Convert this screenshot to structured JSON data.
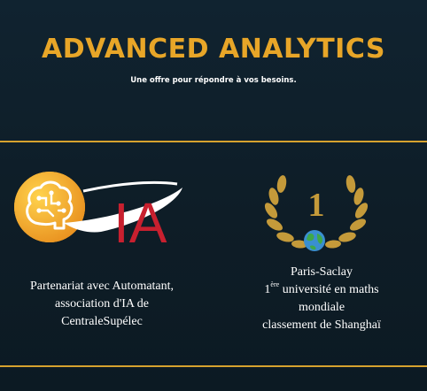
{
  "header": {
    "title": "ADVANCED ANALYTICS",
    "subtitle": "Une offre pour répondre à vos besoins."
  },
  "left_panel": {
    "logo_text": "IA",
    "caption_lines": [
      "Partenariat avec Automatant,",
      "association d'IA de",
      "CentraleSupélec"
    ]
  },
  "right_panel": {
    "rank": "1",
    "caption": {
      "line1": "Paris-Saclay",
      "rank_number": "1",
      "rank_suffix": "ère",
      "rank_rest": " université en maths",
      "line3": "mondiale",
      "line4": "classement de Shanghaï"
    }
  },
  "colors": {
    "background": "#0f1f29",
    "accent_gold": "#e8a628",
    "ia_red": "#c8202f",
    "globe_blue": "#3a8fd0"
  }
}
